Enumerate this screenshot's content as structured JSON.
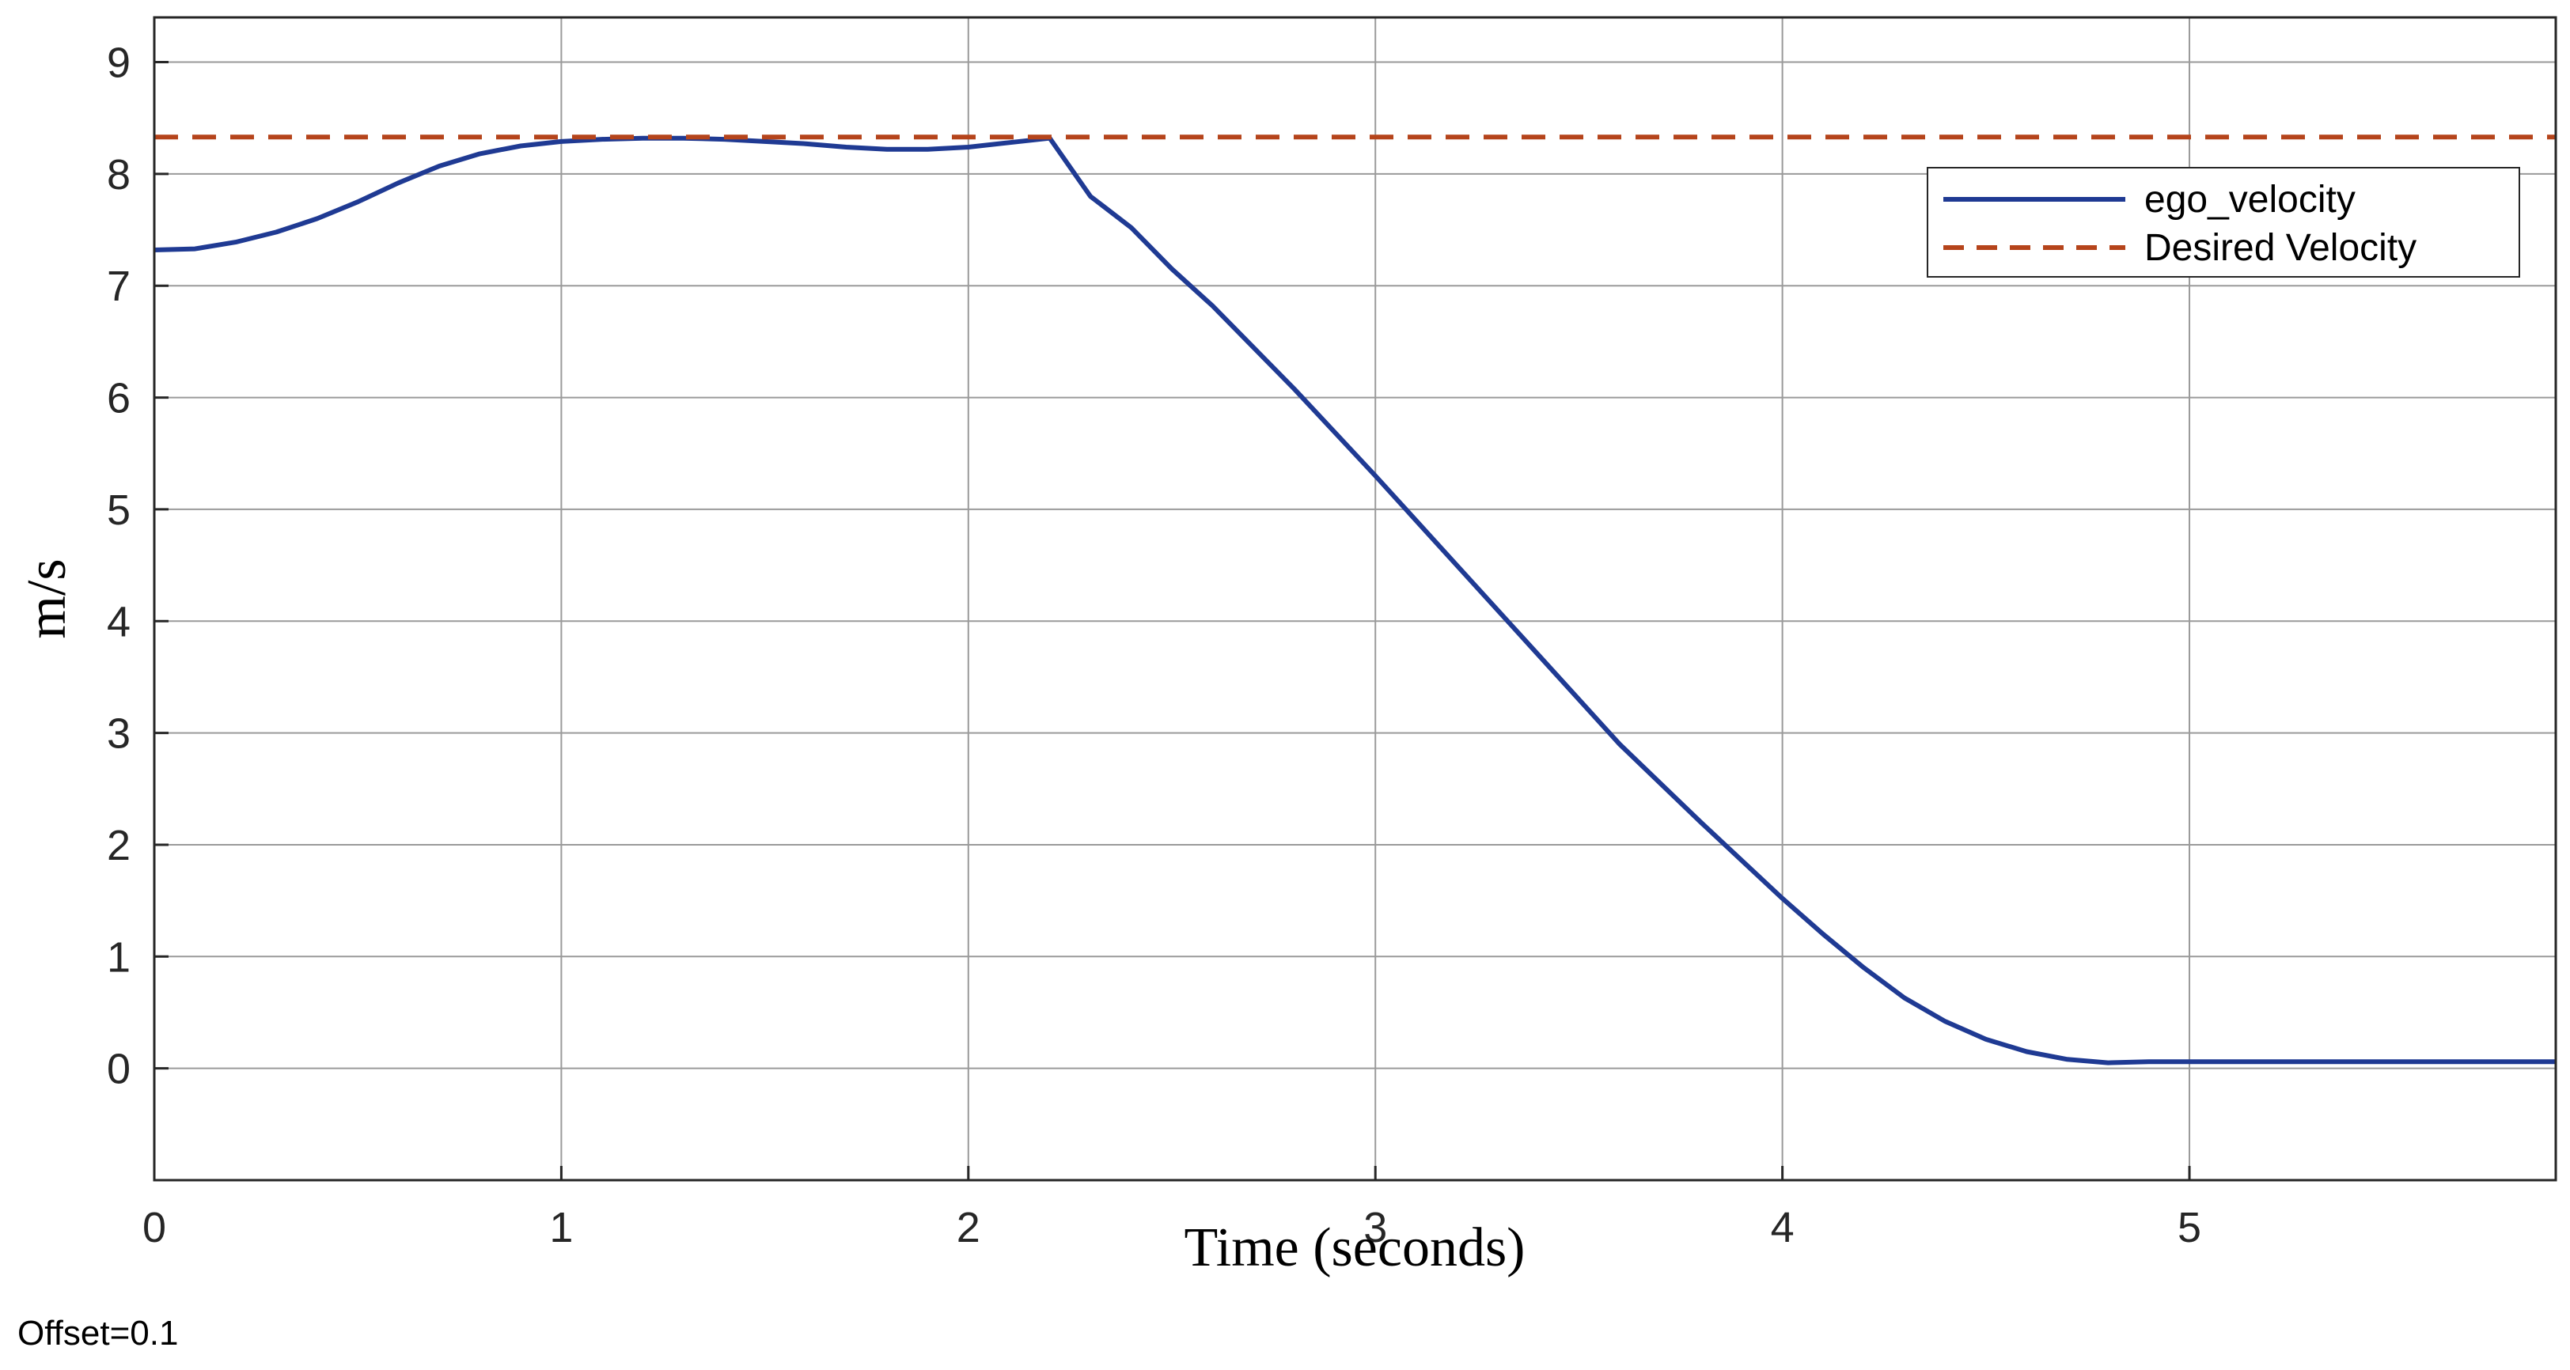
{
  "chart_data": {
    "type": "line",
    "title": "",
    "xlabel": "Time (seconds)",
    "ylabel": "m/s",
    "xlim": [
      0,
      5.9
    ],
    "ylim": [
      -1,
      9.4
    ],
    "xticks": [
      0,
      1,
      2,
      3,
      4,
      5
    ],
    "yticks": [
      0,
      1,
      2,
      3,
      4,
      5,
      6,
      7,
      8,
      9
    ],
    "grid": true,
    "legend_position": "top-right",
    "series": [
      {
        "name": "ego_velocity",
        "color": "#1f3a93",
        "style": "solid",
        "x": [
          0,
          0.1,
          0.2,
          0.3,
          0.4,
          0.5,
          0.6,
          0.7,
          0.8,
          0.9,
          1.0,
          1.1,
          1.2,
          1.3,
          1.4,
          1.5,
          1.6,
          1.7,
          1.8,
          1.9,
          2.0,
          2.1,
          2.2,
          2.3,
          2.4,
          2.5,
          2.6,
          2.8,
          3.0,
          3.2,
          3.4,
          3.6,
          3.8,
          4.0,
          4.1,
          4.2,
          4.3,
          4.4,
          4.5,
          4.6,
          4.7,
          4.8,
          4.9,
          5.0,
          5.2,
          5.4,
          5.6,
          5.9
        ],
        "y": [
          7.32,
          7.33,
          7.39,
          7.48,
          7.6,
          7.75,
          7.92,
          8.07,
          8.18,
          8.25,
          8.29,
          8.31,
          8.32,
          8.32,
          8.31,
          8.29,
          8.27,
          8.24,
          8.22,
          8.22,
          8.24,
          8.28,
          8.32,
          7.8,
          7.52,
          7.15,
          6.82,
          6.08,
          5.3,
          4.5,
          3.7,
          2.9,
          2.2,
          1.52,
          1.2,
          0.9,
          0.63,
          0.42,
          0.26,
          0.15,
          0.08,
          0.05,
          0.06,
          0.06,
          0.06,
          0.06,
          0.06,
          0.06
        ]
      },
      {
        "name": "Desired Velocity",
        "color": "#b5441b",
        "style": "dashed",
        "x": [
          0,
          5.9
        ],
        "y": [
          8.33,
          8.33
        ]
      }
    ],
    "annotation": "Offset=0.1"
  }
}
